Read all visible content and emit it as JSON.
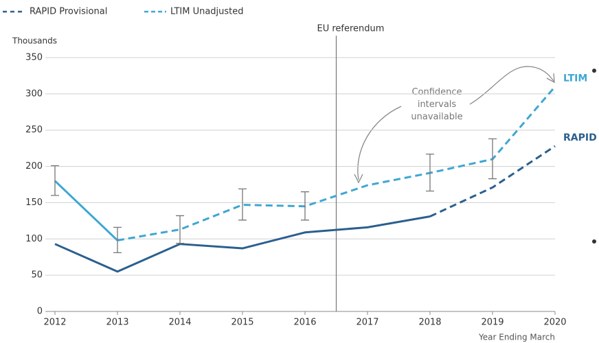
{
  "chart_data": {
    "type": "line",
    "legend": [
      "RAPID Provisional",
      "LTIM Unadjusted"
    ],
    "y_axis_label": "Thousands",
    "x_axis_label": "Year Ending March",
    "x": [
      2012,
      2013,
      2014,
      2015,
      2016,
      2017,
      2018,
      2019,
      2020
    ],
    "xlim": [
      2012,
      2020
    ],
    "xticks": [
      2012,
      2013,
      2014,
      2015,
      2016,
      2017,
      2018,
      2019,
      2020
    ],
    "ylim": [
      0,
      350
    ],
    "yticks": [
      0,
      50,
      100,
      150,
      200,
      250,
      300,
      350
    ],
    "grid": true,
    "series": [
      {
        "name": "RAPID",
        "color": "#2b5f8e",
        "values": [
          93,
          55,
          93,
          87,
          109,
          116,
          131,
          171,
          228
        ],
        "dashed_from": 6
      },
      {
        "name": "LTIM",
        "color": "#3ea6d3",
        "values": [
          180,
          98,
          113,
          147,
          145,
          174,
          191,
          210,
          310
        ],
        "dashed_from": 1,
        "ci_low": [
          160,
          81,
          94,
          126,
          126,
          null,
          166,
          183,
          null
        ],
        "ci_high": [
          201,
          116,
          132,
          169,
          165,
          null,
          217,
          238,
          null
        ]
      }
    ],
    "annotations": [
      {
        "text": "EU referendum",
        "x": 2016.5
      },
      {
        "lines": [
          "Confidence",
          "intervals",
          "unavailable"
        ]
      }
    ]
  }
}
